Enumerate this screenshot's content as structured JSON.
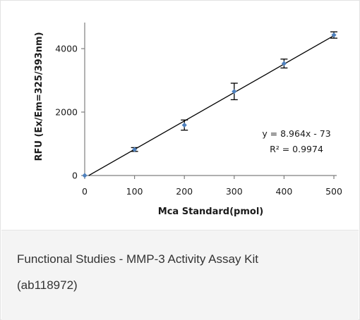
{
  "chart_data": {
    "type": "scatter",
    "xlabel": "Mca Standard(pmol)",
    "ylabel": "RFU (Ex/Em=325/393nm)",
    "xlim": [
      0,
      500
    ],
    "ylim": [
      0,
      5000
    ],
    "x_ticks": [
      "0",
      "100",
      "200",
      "300",
      "400",
      "500"
    ],
    "y_ticks": [
      "0",
      "2000",
      "4000"
    ],
    "x_tick_values": [
      0,
      100,
      200,
      300,
      400,
      500
    ],
    "y_tick_values": [
      0,
      2000,
      4000
    ],
    "grid": false,
    "marker_color": "#4f81bd",
    "series": [
      {
        "x": [
          0,
          100,
          200,
          300,
          400,
          500
        ],
        "y": [
          0,
          820,
          1590,
          2650,
          3530,
          4430
        ],
        "error": [
          0,
          60,
          160,
          260,
          140,
          100
        ]
      }
    ],
    "trendline": {
      "slope": 8.964,
      "intercept": -73,
      "equation": "y = 8.964x - 73",
      "r_squared": "R² = 0.9974"
    }
  },
  "caption": {
    "title": "Functional Studies - MMP-3 Activity Assay Kit",
    "catalog": "(ab118972)"
  }
}
